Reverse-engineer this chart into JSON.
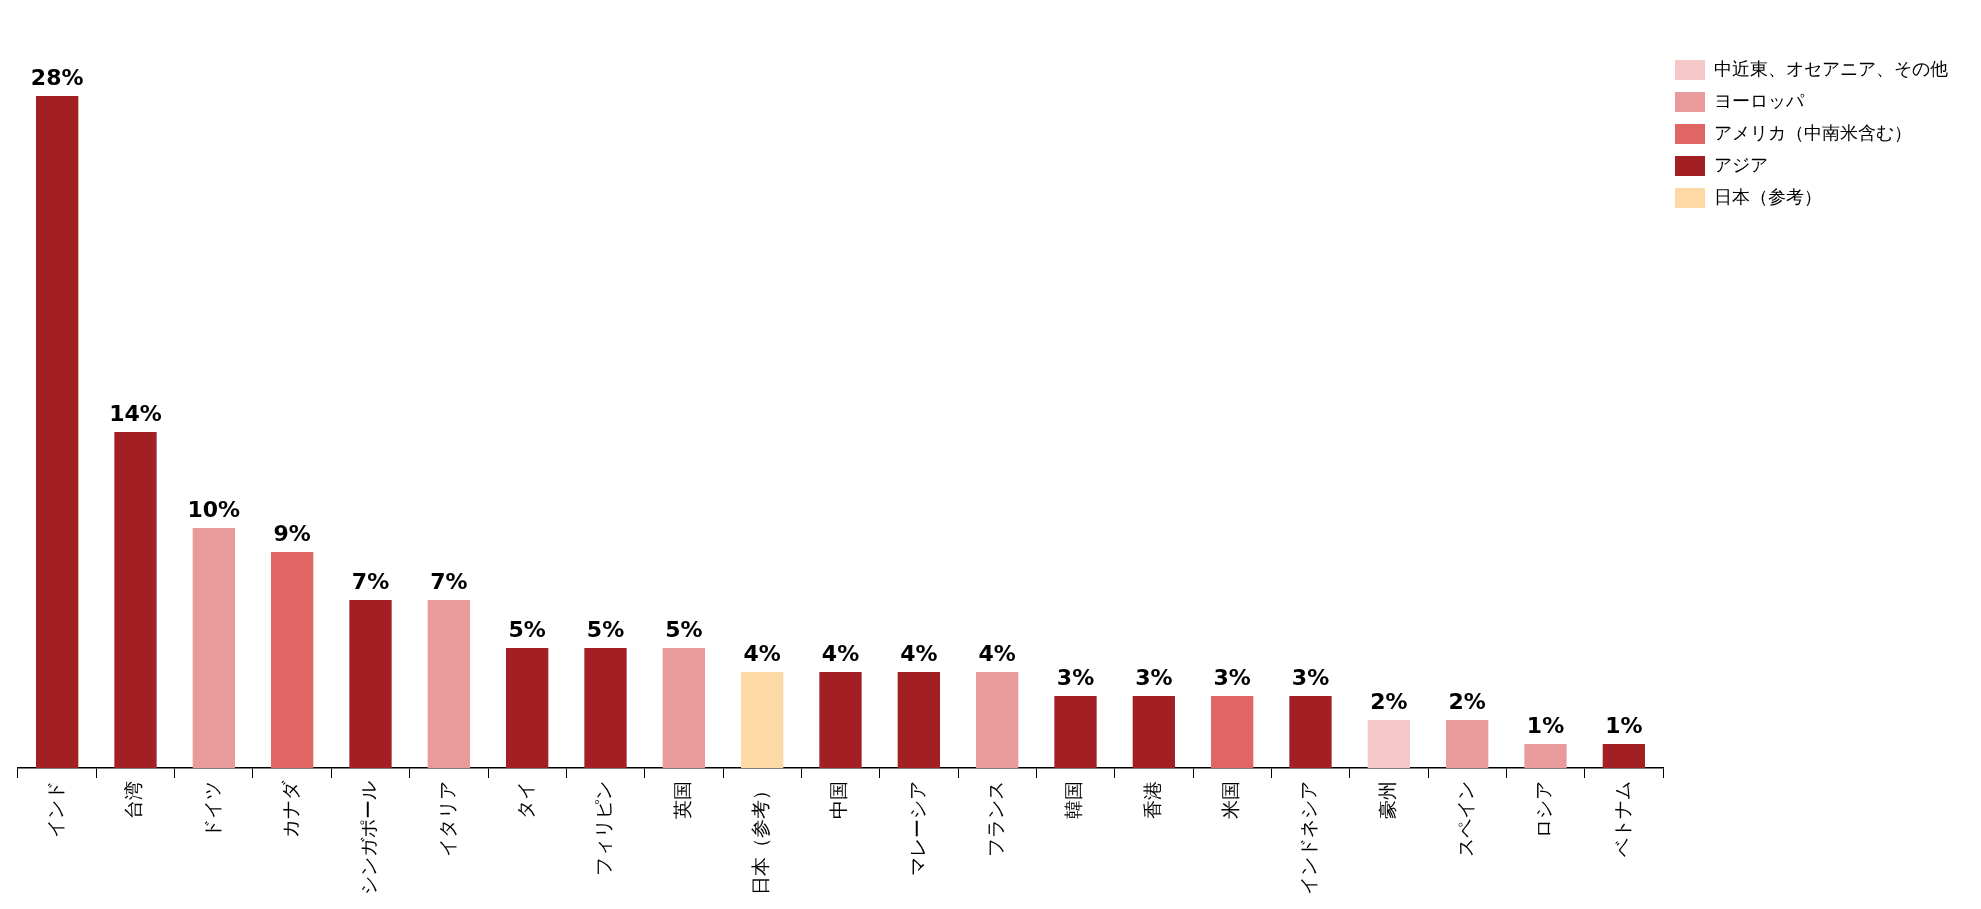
{
  "chart_data": {
    "type": "bar",
    "legend": "top right",
    "categories": [
      "インド",
      "台湾",
      "ドイツ",
      "カナダ",
      "シンガポール",
      "イタリア",
      "タイ",
      "フィリピン",
      "英国",
      "日本（参考）",
      "中国",
      "マレーシア",
      "フランス",
      "韓国",
      "香港",
      "米国",
      "インドネシア",
      "豪州",
      "スペイン",
      "ロシア",
      "ベトナム"
    ],
    "series": [
      {
        "name": "中近東、オセアニア、その他",
        "color": "#f4c7c9",
        "values": [
          null,
          null,
          null,
          null,
          null,
          null,
          null,
          null,
          null,
          null,
          null,
          null,
          null,
          null,
          null,
          null,
          null,
          2,
          null,
          null,
          null
        ],
        "value_labels": [
          null,
          null,
          null,
          null,
          null,
          null,
          null,
          null,
          null,
          null,
          null,
          null,
          null,
          null,
          null,
          null,
          null,
          "2%",
          null,
          null,
          null
        ]
      },
      {
        "name": "ヨーロッパ",
        "color": "#e99a9a",
        "values": [
          null,
          null,
          10,
          null,
          null,
          7,
          null,
          null,
          5,
          null,
          null,
          null,
          4,
          null,
          null,
          null,
          null,
          null,
          2,
          1,
          null
        ],
        "value_labels": [
          null,
          null,
          "10%",
          null,
          null,
          "7%",
          null,
          null,
          "5%",
          null,
          null,
          null,
          "4%",
          null,
          null,
          null,
          null,
          null,
          "2%",
          "1%",
          null
        ]
      },
      {
        "name": "アメリカ（中南米含む）",
        "color": "#e06666",
        "values": [
          null,
          null,
          null,
          9,
          null,
          null,
          null,
          null,
          null,
          null,
          null,
          null,
          null,
          null,
          null,
          3,
          null,
          null,
          null,
          null,
          null
        ],
        "value_labels": [
          null,
          null,
          null,
          "9%",
          null,
          null,
          null,
          null,
          null,
          null,
          null,
          null,
          null,
          null,
          null,
          "3%",
          null,
          null,
          null,
          null,
          null
        ]
      },
      {
        "name": "アジア",
        "color": "#a21f23",
        "values": [
          28,
          14,
          null,
          null,
          7,
          null,
          5,
          5,
          null,
          null,
          4,
          4,
          null,
          3,
          3,
          null,
          3,
          null,
          null,
          null,
          1
        ],
        "value_labels": [
          "28%",
          "14%",
          null,
          null,
          "7%",
          null,
          "5%",
          "5%",
          null,
          null,
          "4%",
          "4%",
          null,
          "3%",
          "3%",
          null,
          "3%",
          null,
          null,
          null,
          "1%"
        ]
      },
      {
        "name": "日本（参考）",
        "color": "#fdd9a5",
        "values": [
          null,
          null,
          null,
          null,
          null,
          null,
          null,
          null,
          null,
          4,
          null,
          null,
          null,
          null,
          null,
          null,
          null,
          null,
          null,
          null,
          null
        ],
        "value_labels": [
          null,
          null,
          null,
          null,
          null,
          null,
          null,
          null,
          null,
          "4%",
          null,
          null,
          null,
          null,
          null,
          null,
          null,
          null,
          null,
          null,
          null
        ]
      }
    ]
  }
}
